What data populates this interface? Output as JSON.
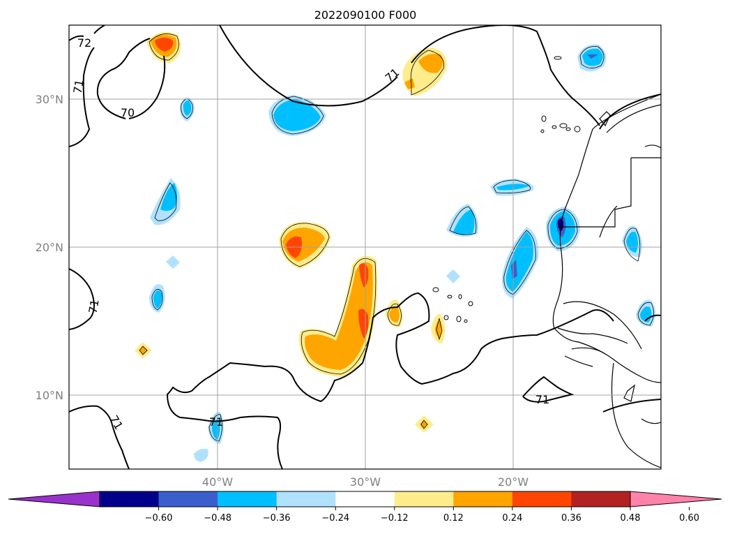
{
  "title": "2022090100 F000",
  "lat_labels": [
    "30°N",
    "20°N",
    "10°N"
  ],
  "lon_labels": [
    "40°W",
    "30°W",
    "20°W"
  ],
  "contour_labels": [
    "72",
    "71",
    "70",
    "71",
    "71",
    "71",
    "71",
    "71"
  ],
  "colorbar": {
    "colors": [
      "#9932cc",
      "#00008b",
      "#3a5fcd",
      "#00bfff",
      "#b0e2ff",
      "#ffffff",
      "#ffec8b",
      "#ffa500",
      "#ff4500",
      "#b22222",
      "#ff82ab"
    ],
    "tick_labels": [
      "−0.60",
      "−0.48",
      "−0.36",
      "−0.24",
      "−0.12",
      "0.12",
      "0.24",
      "0.36",
      "0.48",
      "0.60"
    ]
  }
}
